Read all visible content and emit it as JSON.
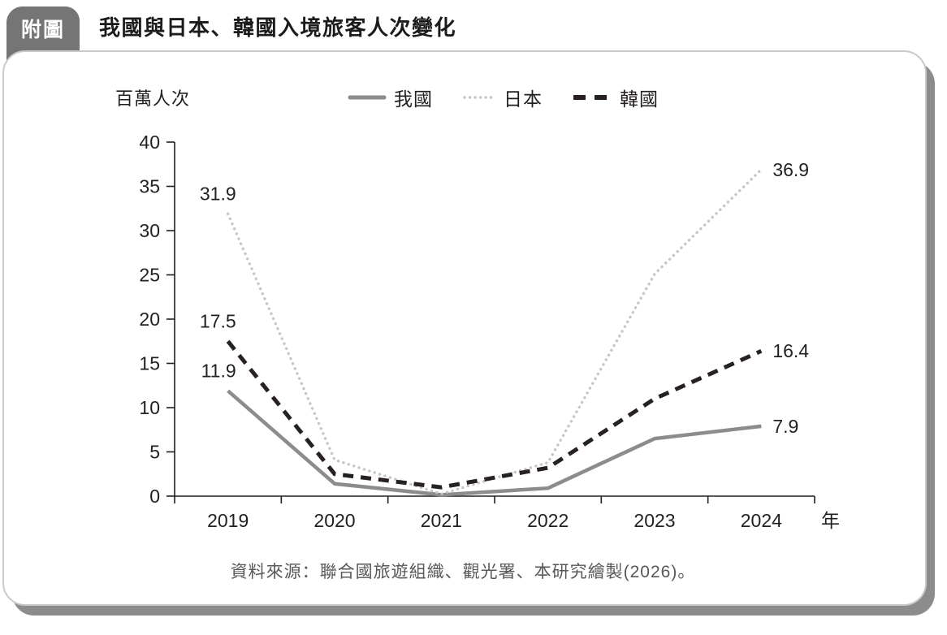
{
  "header": {
    "badge": "附圖",
    "title": "我國與日本、韓國入境旅客人次變化"
  },
  "chart_data": {
    "type": "line",
    "title": "我國與日本、韓國入境旅客人次變化",
    "ylabel": "百萬人次",
    "xlabel": "年",
    "categories": [
      "2019",
      "2020",
      "2021",
      "2022",
      "2023",
      "2024"
    ],
    "ylim": [
      0,
      40
    ],
    "y_tick_step": 5,
    "grid": false,
    "legend_position": "top",
    "series": [
      {
        "name": "我國",
        "style": "solid",
        "color": "#8c8c8c",
        "values": [
          11.9,
          1.4,
          0.15,
          0.9,
          6.5,
          7.9
        ],
        "end_labels": {
          "first": "11.9",
          "last": "7.9"
        }
      },
      {
        "name": "日本",
        "style": "dotted",
        "color": "#c7c5c5",
        "values": [
          31.9,
          4.1,
          0.25,
          3.8,
          25.1,
          36.9
        ],
        "end_labels": {
          "first": "31.9",
          "last": "36.9"
        }
      },
      {
        "name": "韓國",
        "style": "dashed",
        "color": "#272123",
        "values": [
          17.5,
          2.5,
          1.0,
          3.2,
          11.0,
          16.4
        ],
        "end_labels": {
          "first": "17.5",
          "last": "16.4"
        }
      }
    ]
  },
  "footer": {
    "source": "資料來源：聯合國旅遊組織、觀光署、本研究繪製(2026)。"
  },
  "colors": {
    "badge_bg": "#757575",
    "card_border": "#cacaca",
    "card_shadow": "#8c8c8c",
    "axis": "#231f20",
    "label_text": "#231f20",
    "source_text": "#595757"
  }
}
